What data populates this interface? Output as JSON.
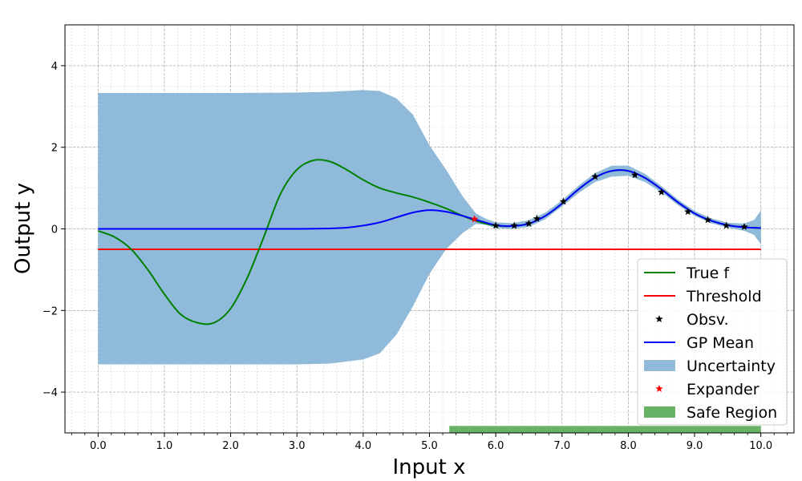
{
  "chart_data": {
    "type": "line",
    "title": "",
    "xlabel": "Input x",
    "ylabel": "Output y",
    "xlim": [
      -0.5,
      10.5
    ],
    "ylim": [
      -5,
      5
    ],
    "x_ticks": [
      0.0,
      1.0,
      2.0,
      3.0,
      4.0,
      5.0,
      6.0,
      7.0,
      8.0,
      9.0,
      10.0
    ],
    "x_tick_labels": [
      "0.0",
      "1.0",
      "2.0",
      "3.0",
      "4.0",
      "5.0",
      "6.0",
      "7.0",
      "8.0",
      "9.0",
      "10.0"
    ],
    "y_ticks": [
      -4,
      -2,
      0,
      2,
      4
    ],
    "y_tick_labels": [
      "−4",
      "−2",
      "0",
      "2",
      "4"
    ],
    "grid": true,
    "legend_position": "bottom-right",
    "threshold": -0.5,
    "colors": {
      "true_f": "#008000",
      "threshold": "#ff0000",
      "observations": "#000000",
      "gp_mean": "#0000ff",
      "uncertainty": "#8fbad9",
      "expander": "#ff0000",
      "safe_region": "#66b366"
    },
    "series": [
      {
        "name": "True f",
        "x": [
          0,
          0.25,
          0.5,
          0.75,
          1.0,
          1.25,
          1.5,
          1.75,
          2.0,
          2.25,
          2.5,
          2.75,
          3.0,
          3.25,
          3.5,
          3.75,
          4.0,
          4.25,
          4.5,
          4.75,
          5.0,
          5.25,
          5.5,
          5.75,
          6.0,
          6.25,
          6.5,
          6.75,
          7.0,
          7.25,
          7.5,
          7.75,
          8.0,
          8.25,
          8.5,
          8.75,
          9.0,
          9.25,
          9.5,
          9.75,
          10.0
        ],
        "y": [
          -0.05,
          -0.2,
          -0.5,
          -1.0,
          -1.6,
          -2.1,
          -2.3,
          -2.3,
          -1.95,
          -1.2,
          -0.2,
          0.85,
          1.45,
          1.68,
          1.65,
          1.45,
          1.2,
          1.0,
          0.88,
          0.78,
          0.65,
          0.5,
          0.32,
          0.17,
          0.08,
          0.07,
          0.13,
          0.32,
          0.62,
          0.97,
          1.26,
          1.42,
          1.42,
          1.25,
          0.97,
          0.65,
          0.38,
          0.2,
          0.09,
          0.04,
          0.02
        ]
      },
      {
        "name": "GP Mean",
        "x": [
          0,
          0.5,
          1.0,
          1.5,
          2.0,
          2.5,
          3.0,
          3.5,
          3.75,
          4.0,
          4.25,
          4.5,
          4.75,
          5.0,
          5.25,
          5.5,
          5.75,
          6.0,
          6.25,
          6.5,
          6.75,
          7.0,
          7.25,
          7.5,
          7.75,
          8.0,
          8.25,
          8.5,
          8.75,
          9.0,
          9.25,
          9.5,
          9.75,
          10.0
        ],
        "y": [
          0,
          0,
          0,
          0,
          0,
          0,
          0,
          0.01,
          0.03,
          0.08,
          0.16,
          0.28,
          0.4,
          0.46,
          0.42,
          0.32,
          0.2,
          0.09,
          0.07,
          0.13,
          0.32,
          0.62,
          0.97,
          1.26,
          1.42,
          1.42,
          1.25,
          0.97,
          0.65,
          0.38,
          0.2,
          0.09,
          0.04,
          0.02
        ]
      },
      {
        "name": "Uncertainty",
        "x": [
          0,
          1.0,
          2.0,
          3.0,
          3.5,
          4.0,
          4.25,
          4.5,
          4.75,
          5.0,
          5.25,
          5.5,
          5.7,
          5.85,
          6.0,
          6.25,
          6.5,
          6.75,
          7.0,
          7.25,
          7.5,
          7.75,
          8.0,
          8.25,
          8.5,
          8.75,
          9.0,
          9.25,
          9.5,
          9.75,
          9.9,
          10.0
        ],
        "lower": [
          -3.32,
          -3.32,
          -3.32,
          -3.32,
          -3.3,
          -3.2,
          -3.05,
          -2.6,
          -1.9,
          -1.1,
          -0.5,
          -0.1,
          0.12,
          0.1,
          0.02,
          0.0,
          0.05,
          0.24,
          0.55,
          0.88,
          1.15,
          1.28,
          1.3,
          1.15,
          0.9,
          0.58,
          0.32,
          0.14,
          0.03,
          -0.05,
          -0.15,
          -0.38
        ],
        "upper": [
          3.33,
          3.33,
          3.33,
          3.34,
          3.36,
          3.4,
          3.38,
          3.2,
          2.8,
          2.05,
          1.45,
          0.8,
          0.38,
          0.25,
          0.16,
          0.14,
          0.21,
          0.4,
          0.7,
          1.06,
          1.37,
          1.55,
          1.55,
          1.35,
          1.05,
          0.72,
          0.44,
          0.26,
          0.15,
          0.13,
          0.22,
          0.45
        ]
      }
    ],
    "observations": {
      "name": "Obsv.",
      "x": [
        6.0,
        6.28,
        6.5,
        6.62,
        7.02,
        7.5,
        8.1,
        8.5,
        8.9,
        9.2,
        9.48,
        9.75
      ],
      "y": [
        0.08,
        0.08,
        0.13,
        0.25,
        0.67,
        1.28,
        1.32,
        0.9,
        0.42,
        0.22,
        0.08,
        0.05
      ]
    },
    "expander": {
      "name": "Expander",
      "x": [
        5.68
      ],
      "y": [
        0.24
      ]
    },
    "safe_region": {
      "name": "Safe Region",
      "x_start": 5.3,
      "x_end": 10.0
    },
    "legend": [
      "True f",
      "Threshold",
      "Obsv.",
      "GP Mean",
      "Uncertainty",
      "Expander",
      "Safe Region"
    ]
  }
}
